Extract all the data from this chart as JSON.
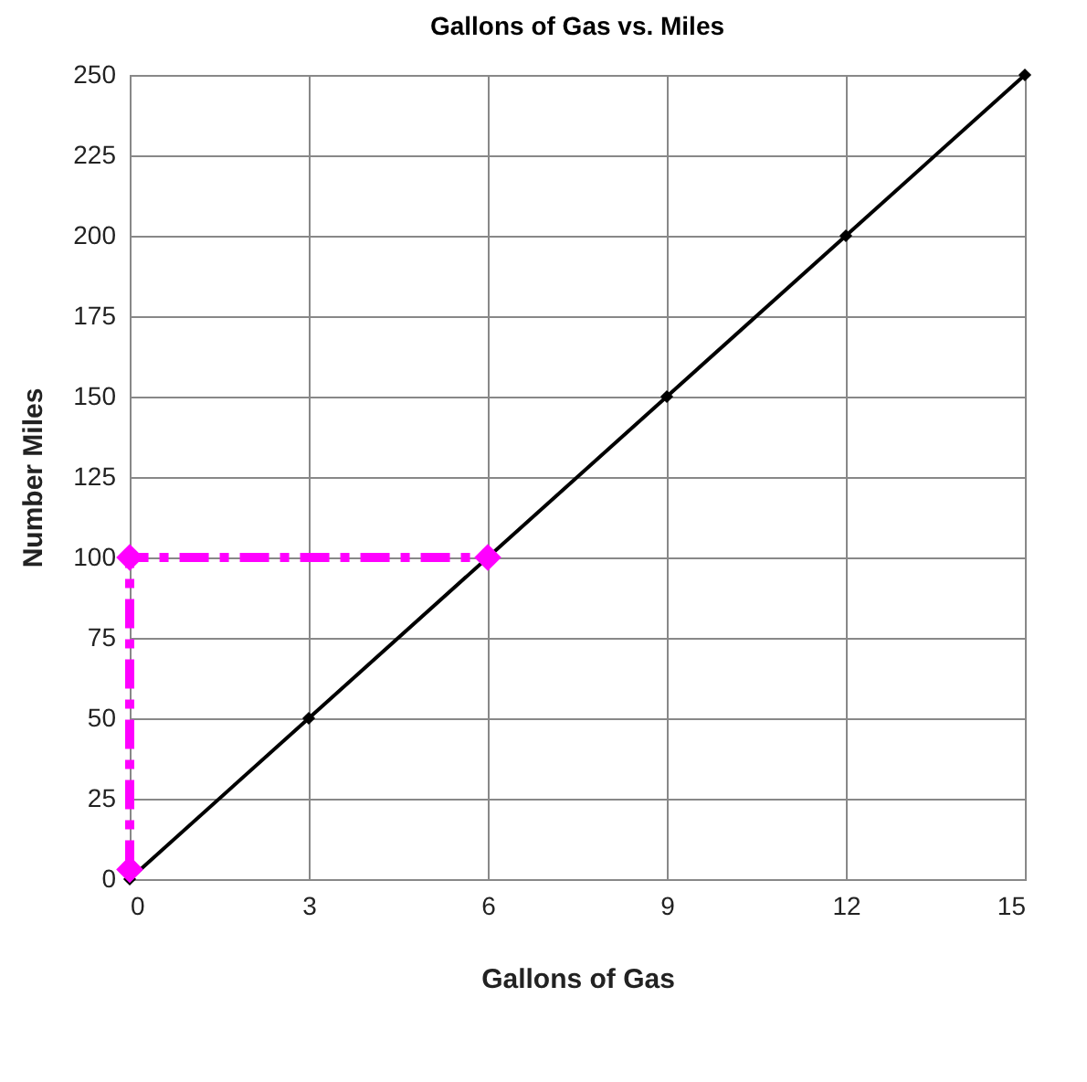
{
  "chart_data": {
    "type": "line",
    "title": "Gallons of Gas vs. Miles",
    "xlabel": "Gallons of Gas",
    "ylabel": "Number Miles",
    "xlim": [
      0,
      15
    ],
    "xticks": [
      0,
      3,
      6,
      9,
      12,
      15
    ],
    "ylim": [
      0,
      250
    ],
    "yticks": [
      0,
      25,
      50,
      75,
      100,
      125,
      150,
      175,
      200,
      225,
      250
    ],
    "grid": true,
    "marker": "diamond",
    "series": [
      {
        "color": "#000000",
        "x": [
          0,
          3,
          6,
          9,
          12,
          15
        ],
        "values": [
          0,
          50,
          100,
          150,
          200,
          250
        ],
        "line_style": "solid"
      },
      {
        "color": "#ff00ff",
        "x": [
          0,
          0,
          6
        ],
        "values": [
          3,
          100,
          100
        ],
        "line_style": "dashed"
      }
    ]
  }
}
